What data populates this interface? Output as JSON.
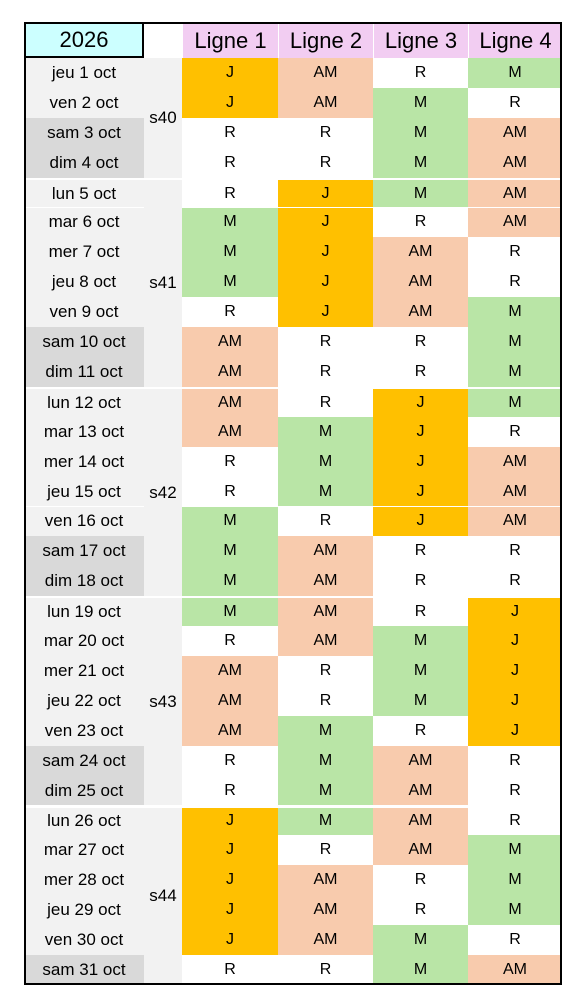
{
  "header": {
    "year": "2026",
    "lines": [
      "Ligne 1",
      "Ligne 2",
      "Ligne 3",
      "Ligne 4"
    ]
  },
  "colors": {
    "J": "#ffc000",
    "AM": "#f8cbad",
    "M": "#b9e5a6",
    "R": "#ffffff"
  },
  "weekday_color": "#f2f2f2",
  "weekend_color": "#d9d9d9",
  "weeks": [
    {
      "label": "s40",
      "days": [
        {
          "date": "jeu 1 oct",
          "weekend": false,
          "shifts": [
            "J",
            "AM",
            "R",
            "M"
          ]
        },
        {
          "date": "ven 2 oct",
          "weekend": false,
          "shifts": [
            "J",
            "AM",
            "M",
            "R"
          ]
        },
        {
          "date": "sam 3 oct",
          "weekend": true,
          "shifts": [
            "R",
            "R",
            "M",
            "AM"
          ]
        },
        {
          "date": "dim 4 oct",
          "weekend": true,
          "shifts": [
            "R",
            "R",
            "M",
            "AM"
          ]
        }
      ]
    },
    {
      "label": "s41",
      "days": [
        {
          "date": "lun 5 oct",
          "weekend": false,
          "shifts": [
            "R",
            "J",
            "M",
            "AM"
          ]
        },
        {
          "date": "mar 6 oct",
          "weekend": false,
          "shifts": [
            "M",
            "J",
            "R",
            "AM"
          ]
        },
        {
          "date": "mer 7 oct",
          "weekend": false,
          "shifts": [
            "M",
            "J",
            "AM",
            "R"
          ]
        },
        {
          "date": "jeu 8 oct",
          "weekend": false,
          "shifts": [
            "M",
            "J",
            "AM",
            "R"
          ]
        },
        {
          "date": "ven 9 oct",
          "weekend": false,
          "shifts": [
            "R",
            "J",
            "AM",
            "M"
          ]
        },
        {
          "date": "sam 10 oct",
          "weekend": true,
          "shifts": [
            "AM",
            "R",
            "R",
            "M"
          ]
        },
        {
          "date": "dim 11 oct",
          "weekend": true,
          "shifts": [
            "AM",
            "R",
            "R",
            "M"
          ]
        }
      ]
    },
    {
      "label": "s42",
      "days": [
        {
          "date": "lun 12 oct",
          "weekend": false,
          "shifts": [
            "AM",
            "R",
            "J",
            "M"
          ]
        },
        {
          "date": "mar 13 oct",
          "weekend": false,
          "shifts": [
            "AM",
            "M",
            "J",
            "R"
          ]
        },
        {
          "date": "mer 14 oct",
          "weekend": false,
          "shifts": [
            "R",
            "M",
            "J",
            "AM"
          ]
        },
        {
          "date": "jeu 15 oct",
          "weekend": false,
          "shifts": [
            "R",
            "M",
            "J",
            "AM"
          ]
        },
        {
          "date": "ven 16 oct",
          "weekend": false,
          "shifts": [
            "M",
            "R",
            "J",
            "AM"
          ]
        },
        {
          "date": "sam 17 oct",
          "weekend": true,
          "shifts": [
            "M",
            "AM",
            "R",
            "R"
          ]
        },
        {
          "date": "dim 18 oct",
          "weekend": true,
          "shifts": [
            "M",
            "AM",
            "R",
            "R"
          ]
        }
      ]
    },
    {
      "label": "s43",
      "days": [
        {
          "date": "lun 19 oct",
          "weekend": false,
          "shifts": [
            "M",
            "AM",
            "R",
            "J"
          ]
        },
        {
          "date": "mar 20 oct",
          "weekend": false,
          "shifts": [
            "R",
            "AM",
            "M",
            "J"
          ]
        },
        {
          "date": "mer 21 oct",
          "weekend": false,
          "shifts": [
            "AM",
            "R",
            "M",
            "J"
          ]
        },
        {
          "date": "jeu 22 oct",
          "weekend": false,
          "shifts": [
            "AM",
            "R",
            "M",
            "J"
          ]
        },
        {
          "date": "ven 23 oct",
          "weekend": false,
          "shifts": [
            "AM",
            "M",
            "R",
            "J"
          ]
        },
        {
          "date": "sam 24 oct",
          "weekend": true,
          "shifts": [
            "R",
            "M",
            "AM",
            "R"
          ]
        },
        {
          "date": "dim 25 oct",
          "weekend": true,
          "shifts": [
            "R",
            "M",
            "AM",
            "R"
          ]
        }
      ]
    },
    {
      "label": "s44",
      "days": [
        {
          "date": "lun 26 oct",
          "weekend": false,
          "shifts": [
            "J",
            "M",
            "AM",
            "R"
          ]
        },
        {
          "date": "mar 27 oct",
          "weekend": false,
          "shifts": [
            "J",
            "R",
            "AM",
            "M"
          ]
        },
        {
          "date": "mer 28 oct",
          "weekend": false,
          "shifts": [
            "J",
            "AM",
            "R",
            "M"
          ]
        },
        {
          "date": "jeu 29 oct",
          "weekend": false,
          "shifts": [
            "J",
            "AM",
            "R",
            "M"
          ]
        },
        {
          "date": "ven 30 oct",
          "weekend": false,
          "shifts": [
            "J",
            "AM",
            "M",
            "R"
          ]
        },
        {
          "date": "sam 31 oct",
          "weekend": true,
          "shifts": [
            "R",
            "R",
            "M",
            "AM"
          ]
        }
      ]
    }
  ]
}
